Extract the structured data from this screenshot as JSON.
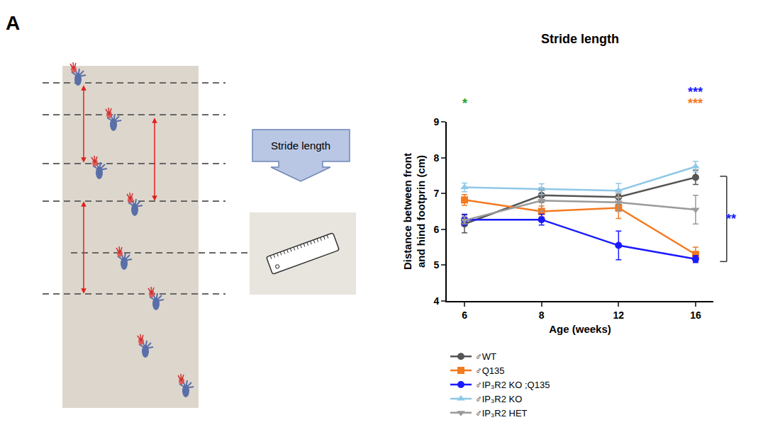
{
  "panel": "A",
  "schematic_label": "Stride length",
  "chart_data": {
    "type": "line",
    "title": "Stride length",
    "x_label": "Age (weeks)",
    "y_label": "Distance between front and hind footprin (cm)",
    "categories": [
      "6",
      "8",
      "12",
      "16"
    ],
    "ylim": [
      4,
      9
    ],
    "yticks": [
      4,
      5,
      6,
      7,
      8,
      9
    ],
    "grid": false,
    "legend": "bottom",
    "series": [
      {
        "name": "♂WT",
        "color": "#555555",
        "marker": "circle",
        "values": [
          6.15,
          6.95,
          6.9,
          7.45
        ],
        "errors": [
          0.25,
          0.2,
          0.2,
          0.2
        ]
      },
      {
        "name": "♂Q135",
        "color": "#f47a1f",
        "marker": "square",
        "values": [
          6.82,
          6.5,
          6.6,
          5.3
        ],
        "errors": [
          0.15,
          0.15,
          0.3,
          0.2
        ]
      },
      {
        "name": "♂IP₃R2 KO ;Q135",
        "color": "#1a1aff",
        "marker": "circle",
        "values": [
          6.27,
          6.27,
          5.55,
          5.17
        ],
        "errors": [
          0.15,
          0.15,
          0.4,
          0.1
        ]
      },
      {
        "name": "♂IP₃R2 KO",
        "color": "#8fc8e8",
        "marker": "triangle-up",
        "values": [
          7.17,
          7.12,
          7.08,
          7.75
        ],
        "errors": [
          0.12,
          0.15,
          0.2,
          0.15
        ]
      },
      {
        "name": "♂IP₃R2 HET",
        "color": "#9a9a9a",
        "marker": "triangle-down",
        "values": [
          6.25,
          6.8,
          6.75,
          6.55
        ],
        "errors": [
          0.1,
          0.3,
          0.25,
          0.4
        ]
      }
    ],
    "annotations": [
      {
        "text": "*",
        "category": "6",
        "color": "#2ca02c"
      },
      {
        "text": "***",
        "category": "16",
        "color": "#1a1aff"
      },
      {
        "text": "***",
        "category": "16",
        "color": "#f47a1f"
      }
    ],
    "bracket": {
      "text": "**",
      "color": "#1a1aff",
      "from": 7.48,
      "to": 5.1
    }
  }
}
